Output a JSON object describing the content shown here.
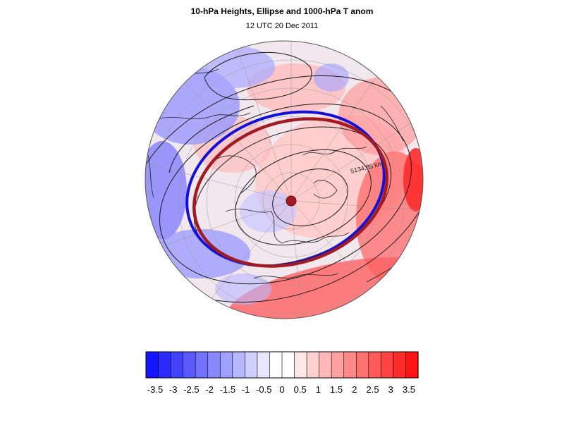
{
  "title": "10-hPa Heights, Ellipse and 1000-hPa T anom",
  "subtitle": "12 UTC 20 Dec 2011",
  "contour_label": "5134.85 km",
  "colors": {
    "blue_ellipse": "#1010d8",
    "red_ellipse": "#a01c22",
    "contour": "#1a1a1a",
    "coast": "#202020"
  },
  "colorbar": {
    "labels": [
      "-3.5",
      "-3",
      "-2.5",
      "-2",
      "-1.5",
      "-1",
      "-0.5",
      "0",
      "0.5",
      "1",
      "1.5",
      "2",
      "2.5",
      "3",
      "3.5"
    ],
    "colors": [
      "#1414ff",
      "#2b2bff",
      "#4343ff",
      "#5a5aff",
      "#7272ff",
      "#8989ff",
      "#a1a1ff",
      "#b8b8ff",
      "#d0d0ff",
      "#e7e7ff",
      "#ffffff",
      "#ffffff",
      "#ffe7e7",
      "#ffd0d0",
      "#ffb8b8",
      "#ffa1a1",
      "#ff8989",
      "#ff7272",
      "#ff5a5a",
      "#ff4343",
      "#ff2b2b",
      "#ff1414"
    ]
  }
}
